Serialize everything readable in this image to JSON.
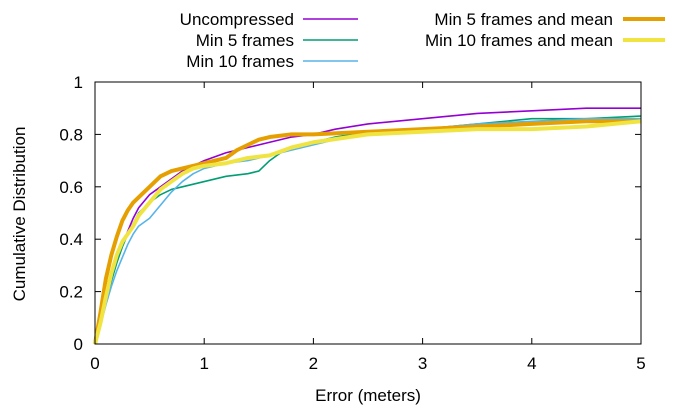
{
  "chart_data": {
    "type": "line",
    "xlabel": "Error (meters)",
    "ylabel": "Cumulative Distribution",
    "xlim": [
      0,
      5
    ],
    "ylim": [
      0,
      1
    ],
    "x_ticks": [
      0,
      1,
      2,
      3,
      4,
      5
    ],
    "y_ticks": [
      0,
      0.2,
      0.4,
      0.6,
      0.8,
      1
    ],
    "x_tick_labels": [
      "0",
      "1",
      "2",
      "3",
      "4",
      "5"
    ],
    "y_tick_labels": [
      "0",
      "0.2",
      "0.4",
      "0.6",
      "0.8",
      "1"
    ],
    "grid": false,
    "legend_position": "top",
    "series": [
      {
        "name": "Uncompressed",
        "color": "#9400d3",
        "x": [
          0,
          0.05,
          0.1,
          0.15,
          0.2,
          0.25,
          0.3,
          0.35,
          0.4,
          0.5,
          0.6,
          0.7,
          0.8,
          0.9,
          1.0,
          1.2,
          1.4,
          1.6,
          1.8,
          2.0,
          2.2,
          2.5,
          3.0,
          3.5,
          4.0,
          4.5,
          5.0
        ],
        "y": [
          0,
          0.08,
          0.17,
          0.25,
          0.32,
          0.38,
          0.43,
          0.48,
          0.52,
          0.57,
          0.6,
          0.63,
          0.66,
          0.68,
          0.7,
          0.73,
          0.75,
          0.77,
          0.79,
          0.8,
          0.82,
          0.84,
          0.86,
          0.88,
          0.89,
          0.9,
          0.9
        ]
      },
      {
        "name": "Min 5 frames",
        "color": "#009e73",
        "x": [
          0,
          0.05,
          0.1,
          0.15,
          0.2,
          0.25,
          0.3,
          0.35,
          0.4,
          0.5,
          0.6,
          0.7,
          0.8,
          0.9,
          1.0,
          1.2,
          1.4,
          1.5,
          1.6,
          1.7,
          1.8,
          2.0,
          2.2,
          2.5,
          3.0,
          3.5,
          4.0,
          4.5,
          5.0
        ],
        "y": [
          0,
          0.07,
          0.16,
          0.24,
          0.31,
          0.37,
          0.42,
          0.46,
          0.5,
          0.54,
          0.57,
          0.59,
          0.6,
          0.61,
          0.62,
          0.64,
          0.65,
          0.66,
          0.7,
          0.73,
          0.75,
          0.77,
          0.79,
          0.81,
          0.82,
          0.84,
          0.86,
          0.86,
          0.87
        ]
      },
      {
        "name": "Min 10 frames",
        "color": "#56b4e9",
        "x": [
          0,
          0.05,
          0.1,
          0.15,
          0.2,
          0.25,
          0.3,
          0.35,
          0.4,
          0.5,
          0.6,
          0.7,
          0.8,
          0.9,
          1.0,
          1.2,
          1.4,
          1.6,
          1.8,
          2.0,
          2.2,
          2.5,
          3.0,
          3.5,
          4.0,
          4.5,
          5.0
        ],
        "y": [
          0,
          0.07,
          0.15,
          0.22,
          0.28,
          0.33,
          0.38,
          0.42,
          0.45,
          0.48,
          0.53,
          0.58,
          0.62,
          0.65,
          0.67,
          0.69,
          0.7,
          0.72,
          0.74,
          0.76,
          0.78,
          0.8,
          0.82,
          0.84,
          0.85,
          0.86,
          0.86
        ]
      },
      {
        "name": "Min 5 frames and mean",
        "color": "#e69f00",
        "x": [
          0,
          0.05,
          0.1,
          0.15,
          0.2,
          0.25,
          0.3,
          0.35,
          0.4,
          0.5,
          0.6,
          0.7,
          0.8,
          0.9,
          1.0,
          1.2,
          1.3,
          1.4,
          1.5,
          1.6,
          1.8,
          2.0,
          2.5,
          3.0,
          3.5,
          4.0,
          4.5,
          5.0
        ],
        "y": [
          0,
          0.12,
          0.25,
          0.34,
          0.41,
          0.47,
          0.51,
          0.54,
          0.56,
          0.6,
          0.64,
          0.66,
          0.67,
          0.68,
          0.69,
          0.71,
          0.74,
          0.76,
          0.78,
          0.79,
          0.8,
          0.8,
          0.81,
          0.82,
          0.83,
          0.84,
          0.85,
          0.85
        ]
      },
      {
        "name": "Min 10 frames and mean",
        "color": "#f0e442",
        "x": [
          0,
          0.05,
          0.1,
          0.15,
          0.2,
          0.25,
          0.3,
          0.35,
          0.4,
          0.5,
          0.6,
          0.7,
          0.8,
          0.9,
          1.0,
          1.2,
          1.4,
          1.6,
          1.8,
          2.0,
          2.5,
          3.0,
          3.5,
          4.0,
          4.5,
          5.0
        ],
        "y": [
          0,
          0.08,
          0.18,
          0.27,
          0.34,
          0.39,
          0.42,
          0.45,
          0.49,
          0.54,
          0.59,
          0.62,
          0.65,
          0.67,
          0.68,
          0.69,
          0.71,
          0.72,
          0.75,
          0.77,
          0.8,
          0.81,
          0.82,
          0.82,
          0.83,
          0.85
        ]
      }
    ]
  },
  "legend": {
    "items": [
      {
        "label": "Uncompressed",
        "color": "#9400d3"
      },
      {
        "label": "Min 5 frames",
        "color": "#009e73"
      },
      {
        "label": "Min 10 frames",
        "color": "#56b4e9"
      },
      {
        "label": "Min 5 frames and mean",
        "color": "#e69f00"
      },
      {
        "label": "Min 10 frames and mean",
        "color": "#f0e442"
      }
    ]
  }
}
